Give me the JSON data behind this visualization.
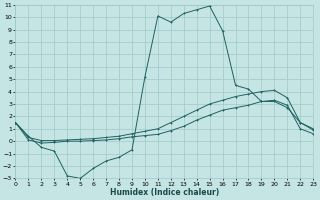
{
  "xlabel": "Humidex (Indice chaleur)",
  "bg_color": "#c5e5e5",
  "grid_color": "#a0c8c8",
  "line_color": "#206060",
  "xlim": [
    0,
    23
  ],
  "ylim": [
    -3,
    11
  ],
  "xticks": [
    0,
    1,
    2,
    3,
    4,
    5,
    6,
    7,
    8,
    9,
    10,
    11,
    12,
    13,
    14,
    15,
    16,
    17,
    18,
    19,
    20,
    21,
    22,
    23
  ],
  "yticks": [
    -3,
    -2,
    -1,
    0,
    1,
    2,
    3,
    4,
    5,
    6,
    7,
    8,
    9,
    10,
    11
  ],
  "line1_x": [
    0,
    1,
    2,
    3,
    4,
    5,
    6,
    7,
    8,
    9,
    10,
    11,
    12,
    13,
    14,
    15,
    16,
    17,
    18,
    19,
    20,
    21,
    22,
    23
  ],
  "line1_y": [
    1.5,
    0.4,
    -0.5,
    -0.8,
    -2.8,
    -3.0,
    -2.2,
    -1.6,
    -1.3,
    -0.7,
    5.2,
    10.1,
    9.6,
    10.3,
    10.6,
    10.9,
    8.9,
    4.5,
    4.2,
    3.2,
    3.2,
    2.7,
    1.5,
    1.0
  ],
  "line2_x": [
    0,
    1,
    2,
    3,
    4,
    5,
    6,
    7,
    8,
    9,
    10,
    11,
    12,
    13,
    14,
    15,
    16,
    17,
    18,
    19,
    20,
    21,
    22,
    23
  ],
  "line2_y": [
    1.5,
    0.3,
    0.05,
    0.05,
    0.1,
    0.15,
    0.2,
    0.3,
    0.4,
    0.6,
    0.8,
    1.0,
    1.5,
    2.0,
    2.5,
    3.0,
    3.3,
    3.6,
    3.8,
    4.0,
    4.1,
    3.5,
    1.5,
    0.9
  ],
  "line3_x": [
    0,
    1,
    2,
    3,
    4,
    5,
    6,
    7,
    8,
    9,
    10,
    11,
    12,
    13,
    14,
    15,
    16,
    17,
    18,
    19,
    20,
    21,
    22,
    23
  ],
  "line3_y": [
    1.5,
    0.1,
    -0.15,
    -0.1,
    0.0,
    0.0,
    0.05,
    0.1,
    0.2,
    0.35,
    0.45,
    0.55,
    0.85,
    1.2,
    1.7,
    2.1,
    2.5,
    2.7,
    2.9,
    3.2,
    3.3,
    2.9,
    1.0,
    0.6
  ]
}
